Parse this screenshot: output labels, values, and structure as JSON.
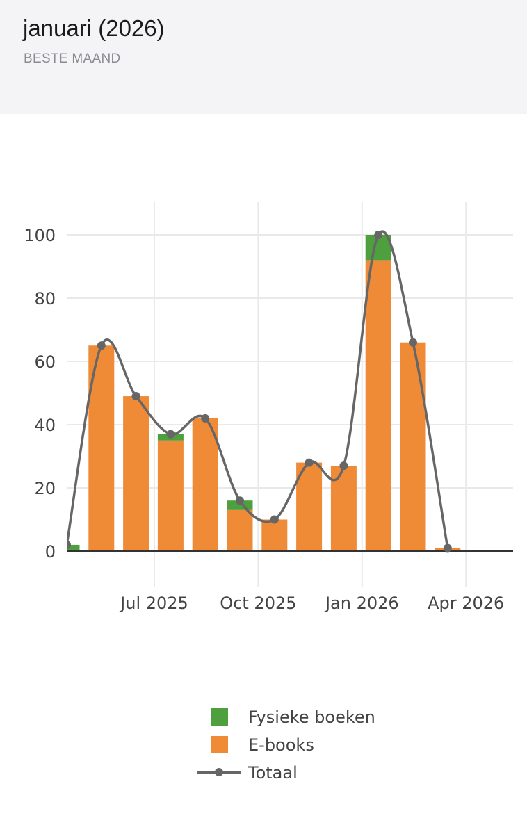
{
  "header": {
    "title": "januari (2026)",
    "subtitle": "BESTE MAAND"
  },
  "chart_data": {
    "type": "bar",
    "stacked": true,
    "x": [
      "2025-04",
      "2025-05",
      "2025-06",
      "2025-07",
      "2025-08",
      "2025-09",
      "2025-10",
      "2025-11",
      "2025-12",
      "2026-01",
      "2026-02",
      "2026-03"
    ],
    "series": [
      {
        "name": "Fysieke boeken",
        "type": "bar",
        "color": "#4e9f3d",
        "values": [
          2,
          0,
          0,
          2,
          0,
          3,
          0,
          0,
          0,
          8,
          0,
          0
        ]
      },
      {
        "name": "E-books",
        "type": "bar",
        "color": "#ef8a37",
        "values": [
          0,
          65,
          49,
          35,
          42,
          13,
          10,
          28,
          27,
          92,
          66,
          1
        ]
      },
      {
        "name": "Totaal",
        "type": "line",
        "color": "#666666",
        "values": [
          2,
          65,
          49,
          37,
          42,
          16,
          10,
          28,
          27,
          100,
          66,
          1
        ]
      }
    ],
    "ylim": [
      0,
      100
    ],
    "yticks": [
      "0",
      "20",
      "40",
      "60",
      "80",
      "100"
    ],
    "xticks": [
      "Jul 2025",
      "Oct 2025",
      "Jan 2026",
      "Apr 2026"
    ],
    "grid": true,
    "legend": "bottom"
  }
}
